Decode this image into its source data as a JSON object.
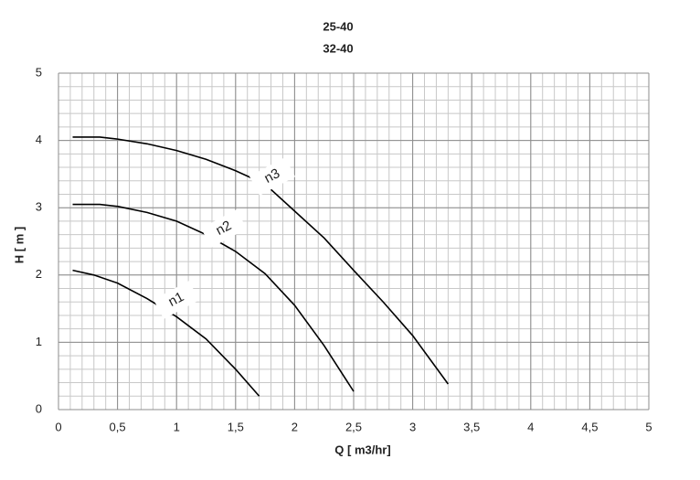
{
  "chart_data": {
    "type": "line",
    "title": "25-40",
    "subtitle": "32-40",
    "x_label": "Q [ m3/hr]",
    "y_label": "H [ m ]",
    "xlim": [
      0,
      5
    ],
    "ylim": [
      0,
      5
    ],
    "xticks": [
      0,
      {
        "value": 0.5,
        "label": "0,5"
      },
      1,
      {
        "value": 1.5,
        "label": "1,5"
      },
      2,
      {
        "value": 2.5,
        "label": "2,5"
      },
      3,
      {
        "value": 3.5,
        "label": "3,5"
      },
      4,
      {
        "value": 4.5,
        "label": "4,5"
      },
      5
    ],
    "yticks": [
      0,
      1,
      2,
      3,
      4,
      5
    ],
    "grid": true,
    "series": [
      {
        "name": "n1",
        "color": "#000000",
        "x": [
          0.12,
          0.3,
          0.5,
          0.75,
          1,
          1.25,
          1.5,
          1.7
        ],
        "values": [
          2.07,
          2.0,
          1.88,
          1.65,
          1.38,
          1.05,
          0.6,
          0.2
        ]
      },
      {
        "name": "n2",
        "color": "#000000",
        "x": [
          0.12,
          0.35,
          0.5,
          0.75,
          1,
          1.25,
          1.5,
          1.75,
          2,
          2.25,
          2.5
        ],
        "values": [
          3.05,
          3.05,
          3.02,
          2.93,
          2.8,
          2.6,
          2.35,
          2.02,
          1.55,
          0.95,
          0.27
        ]
      },
      {
        "name": "n3",
        "color": "#000000",
        "x": [
          0.12,
          0.35,
          0.5,
          0.75,
          1,
          1.25,
          1.5,
          1.75,
          2,
          2.25,
          2.5,
          2.75,
          3,
          3.3
        ],
        "values": [
          4.05,
          4.05,
          4.02,
          3.95,
          3.85,
          3.72,
          3.55,
          3.35,
          2.95,
          2.55,
          2.07,
          1.6,
          1.1,
          0.38
        ]
      }
    ]
  }
}
